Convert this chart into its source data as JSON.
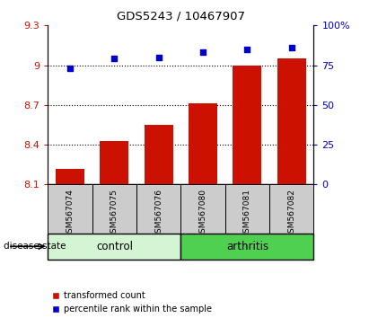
{
  "title": "GDS5243 / 10467907",
  "samples": [
    "GSM567074",
    "GSM567075",
    "GSM567076",
    "GSM567080",
    "GSM567081",
    "GSM567082"
  ],
  "bar_values": [
    8.22,
    8.43,
    8.55,
    8.71,
    9.0,
    9.05
  ],
  "scatter_values": [
    73,
    79,
    80,
    83,
    85,
    86
  ],
  "groups": [
    {
      "label": "control",
      "indices": [
        0,
        1,
        2
      ],
      "color": "#d4f5d4"
    },
    {
      "label": "arthritis",
      "indices": [
        3,
        4,
        5
      ],
      "color": "#50d050"
    }
  ],
  "ylim_left": [
    8.1,
    9.3
  ],
  "ylim_right": [
    0,
    100
  ],
  "yticks_left": [
    8.1,
    8.4,
    8.7,
    9.0,
    9.3
  ],
  "yticks_right": [
    0,
    25,
    50,
    75,
    100
  ],
  "ytick_labels_left": [
    "8.1",
    "8.4",
    "8.7",
    "9",
    "9.3"
  ],
  "ytick_labels_right": [
    "0",
    "25",
    "50",
    "75",
    "100%"
  ],
  "hlines": [
    8.4,
    8.7,
    9.0
  ],
  "bar_color": "#cc1100",
  "scatter_color": "#0000cc",
  "bar_width": 0.65,
  "disease_state_label": "disease state",
  "legend_bar_label": "transformed count",
  "legend_scatter_label": "percentile rank within the sample",
  "left_tick_color": "#cc1100",
  "right_tick_color": "#0000cc",
  "sample_box_color": "#cccccc",
  "fig_width": 4.11,
  "fig_height": 3.54,
  "fig_dpi": 100
}
